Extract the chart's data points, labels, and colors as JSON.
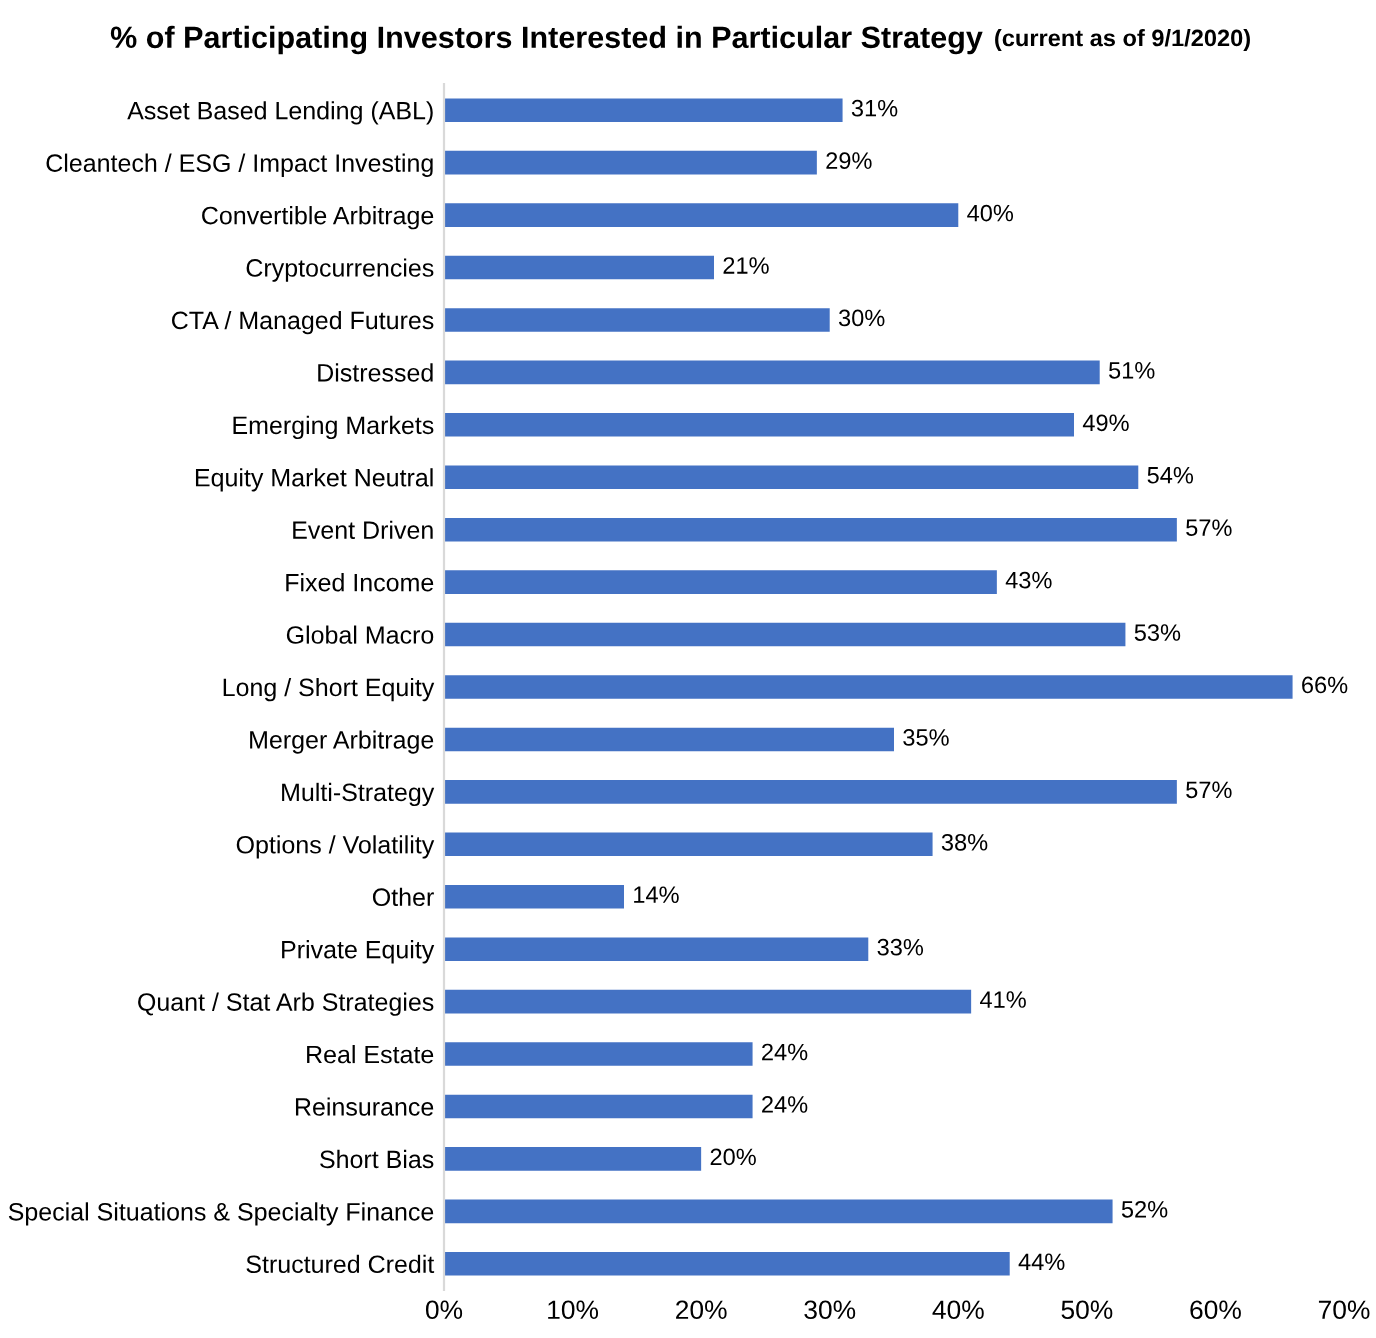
{
  "chart_data": {
    "type": "bar",
    "orientation": "horizontal",
    "title": "% of Participating Investors Interested in Particular Strategy",
    "subtitle": "(current as of 9/1/2020)",
    "categories": [
      "Asset Based Lending (ABL)",
      "Cleantech / ESG / Impact Investing",
      "Convertible Arbitrage",
      "Cryptocurrencies",
      "CTA / Managed Futures",
      "Distressed",
      "Emerging Markets",
      "Equity Market Neutral",
      "Event Driven",
      "Fixed Income",
      "Global Macro",
      "Long / Short Equity",
      "Merger Arbitrage",
      "Multi-Strategy",
      "Options / Volatility",
      "Other",
      "Private Equity",
      "Quant / Stat Arb Strategies",
      "Real Estate",
      "Reinsurance",
      "Short Bias",
      "Special Situations & Specialty Finance",
      "Structured Credit"
    ],
    "values": [
      31,
      29,
      40,
      21,
      30,
      51,
      49,
      54,
      57,
      43,
      53,
      66,
      35,
      57,
      38,
      14,
      33,
      41,
      24,
      24,
      20,
      52,
      44
    ],
    "value_labels": [
      "31%",
      "29%",
      "40%",
      "21%",
      "30%",
      "51%",
      "49%",
      "54%",
      "57%",
      "43%",
      "53%",
      "66%",
      "35%",
      "57%",
      "38%",
      "14%",
      "33%",
      "41%",
      "24%",
      "24%",
      "20%",
      "52%",
      "44%"
    ],
    "color": "#4472c4",
    "xlim": [
      0,
      70
    ],
    "xticks": [
      {
        "value": 0,
        "label": "0%"
      },
      {
        "value": 10,
        "label": "10%"
      },
      {
        "value": 20,
        "label": "20%"
      },
      {
        "value": 30,
        "label": "30%"
      },
      {
        "value": 40,
        "label": "40%"
      },
      {
        "value": 50,
        "label": "50%"
      },
      {
        "value": 60,
        "label": "60%"
      },
      {
        "value": 70,
        "label": "70%"
      }
    ],
    "grid": false,
    "legend": false
  }
}
